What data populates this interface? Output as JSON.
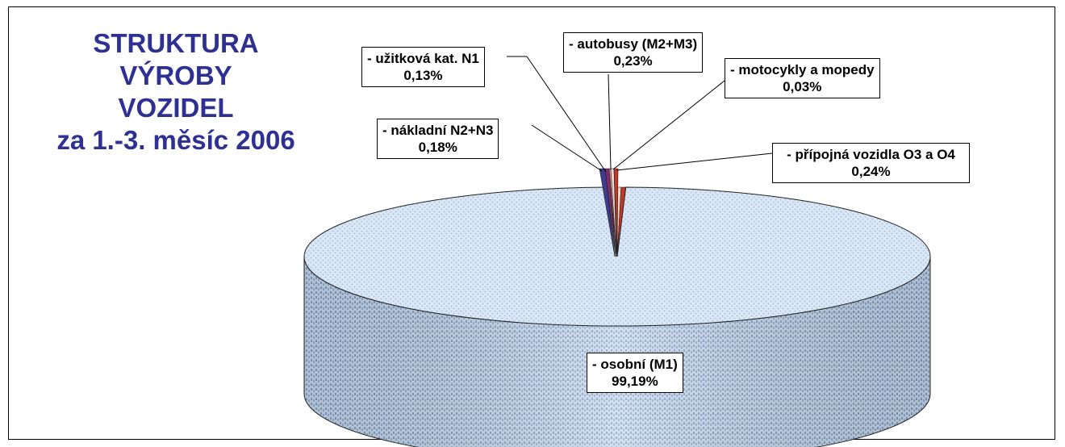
{
  "chart_data": {
    "type": "pie",
    "title_lines": [
      "STRUKTURA",
      "VÝROBY",
      "VOZIDEL",
      "za 1.-3. měsíc 2006"
    ],
    "slices": [
      {
        "label": "- osobní (M1)",
        "value": 99.19,
        "value_text": "99,19%",
        "color": "#c9dcef"
      },
      {
        "label": "- užitková kat. N1",
        "value": 0.13,
        "value_text": "0,13%",
        "color": "#7b2d6e"
      },
      {
        "label": "- nákladní N2+N3",
        "value": 0.18,
        "value_text": "0,18%",
        "color": "#3d3d8f"
      },
      {
        "label": "- autobusy (M2+M3)",
        "value": 0.23,
        "value_text": "0,23%",
        "color": "#f2d7c8"
      },
      {
        "label": "- motocykly a mopedy",
        "value": 0.03,
        "value_text": "0,03%",
        "color": "#e89aa0"
      },
      {
        "label": "- přípojná vozidla O3 a O4",
        "value": 0.24,
        "value_text": "0,24%",
        "color": "#c0392b"
      }
    ],
    "pie_3d": true
  }
}
